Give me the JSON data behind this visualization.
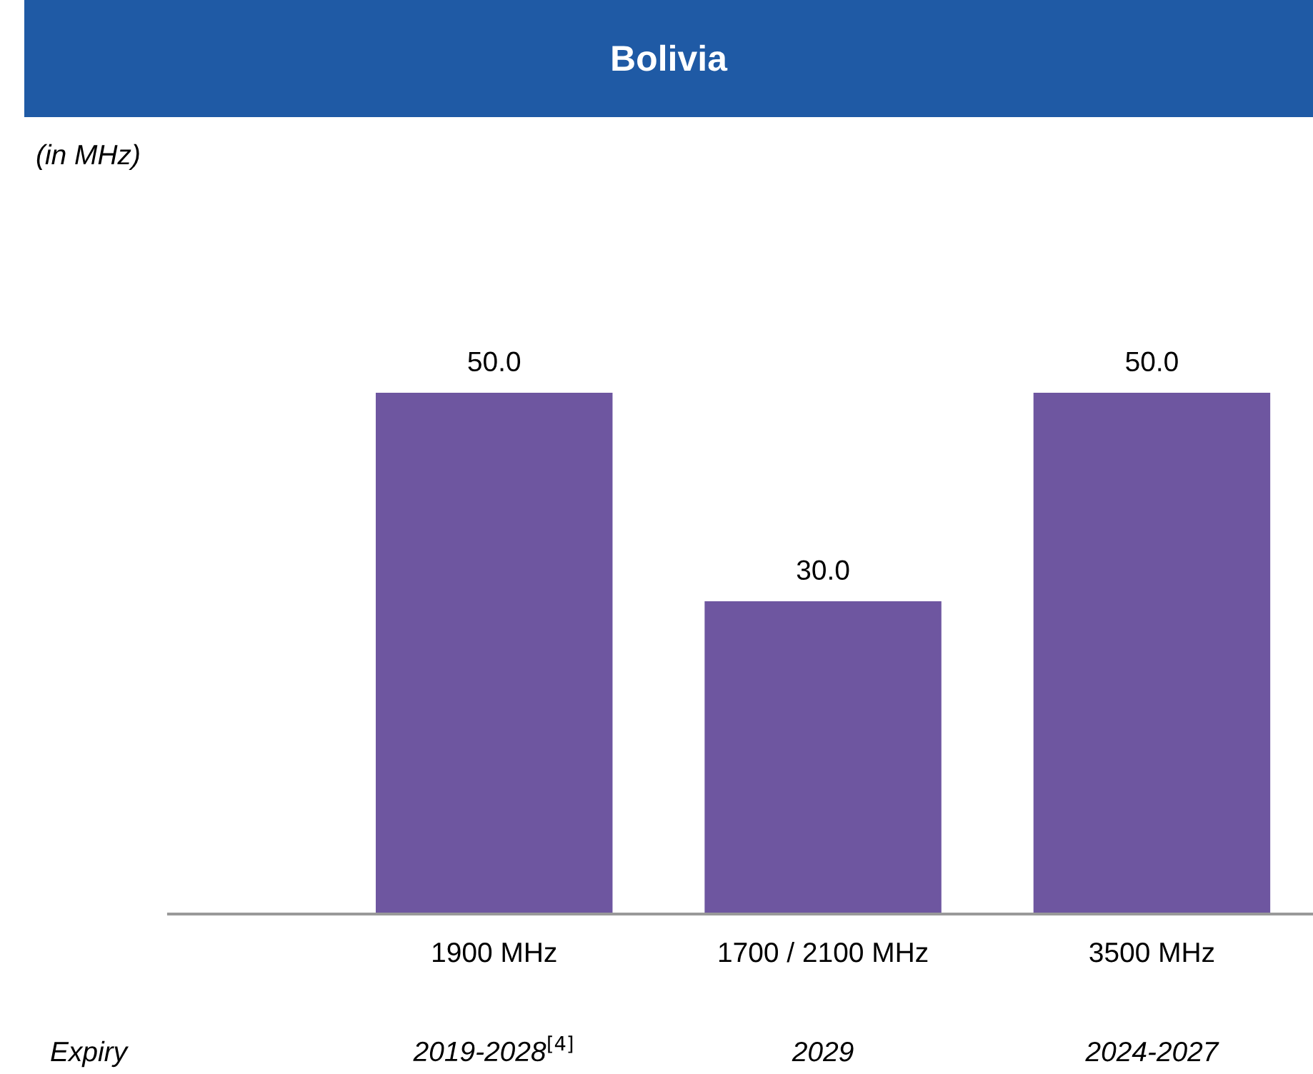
{
  "chart_data": {
    "type": "bar",
    "title": "Bolivia",
    "subtitle": "(in MHz)",
    "categories": [
      "1900 MHz",
      "1700 / 2100 MHz",
      "3500 MHz"
    ],
    "values": [
      50.0,
      30.0,
      50.0
    ],
    "value_labels": [
      "50.0",
      "30.0",
      "50.0"
    ],
    "color": "#6e56a0",
    "grid": false,
    "legend": false,
    "annotations": [
      "Expiry",
      "2019-2028$^{[4]}$",
      "2029",
      "2024-2027"
    ]
  }
}
